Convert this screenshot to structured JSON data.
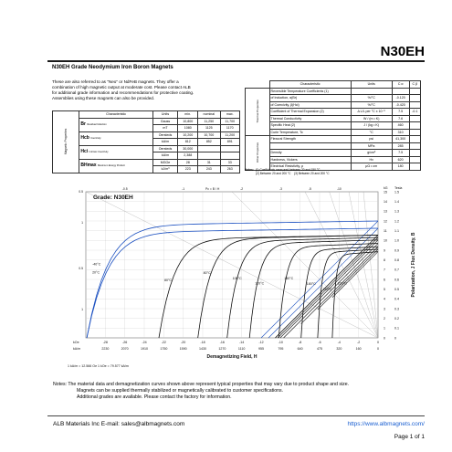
{
  "title": "N30EH",
  "subhead": "N30EH Grade Neodymium Iron Boron Magnets",
  "intro": [
    "These are also referred to as \"Neo\" or NdFeB magnets. They offer a",
    "combination of high magnetic output at moderate cost. Please contact ALB",
    "for additional grade information and recommendations for protective coating.",
    "Assemblies using these magnets can also be provided."
  ],
  "mag_table": {
    "vertical_label": "Magnetic Properties",
    "headers": [
      "Characteristic",
      "Units",
      "min.",
      "nominal",
      "max."
    ],
    "groups": [
      {
        "symbol": "Br",
        "desc": "Residual Induction",
        "rows": [
          {
            "units": "Gauss",
            "min": "10,800",
            "nominal": "11,250",
            "max": "11,700"
          },
          {
            "units": "mT",
            "min": "1080",
            "nominal": "1125",
            "max": "1170"
          }
        ]
      },
      {
        "symbol": "Hcb",
        "desc": "Coercivity",
        "rows": [
          {
            "units": "Oersteds",
            "min": "10,200",
            "nominal": "10,700",
            "max": "11,200"
          },
          {
            "units": "kA/m",
            "min": "812",
            "nominal": "852",
            "max": "891"
          }
        ]
      },
      {
        "symbol": "Hci",
        "desc": "Intrinsic Coercivity",
        "rows": [
          {
            "units": "Oersteds",
            "min": "30,000",
            "nominal": "",
            "max": ""
          },
          {
            "units": "kA/m",
            "min": "2,388",
            "nominal": "",
            "max": ""
          }
        ]
      },
      {
        "symbol": "BHmax",
        "desc": "Maximum Energy Product",
        "rows": [
          {
            "units": "MGOe",
            "min": "28",
            "nominal": "31",
            "max": "33"
          },
          {
            "units": "kJ/m³",
            "min": "223",
            "nominal": "243",
            "max": "263"
          }
        ]
      }
    ]
  },
  "therm_table": {
    "headers": [
      "Characteristic",
      "Units",
      "C α",
      "C β"
    ],
    "thermal_label": "Thermal Properties",
    "other_label": "Other Properties",
    "thermal_rows": [
      {
        "name": "Reversible Temperature Coefficients (1)",
        "units": "",
        "a": "",
        "b": ""
      },
      {
        "name": "of Induction, α(Br)",
        "units": "%/°C",
        "a": "-0.120",
        "b": ""
      },
      {
        "name": "of Coercivity, β(Hci)",
        "units": "%/°C",
        "a": "-0.420",
        "b": ""
      },
      {
        "name": "Coefficient of Thermal Expansion (2)",
        "units": "Δ L/L per °C x 10⁻⁶",
        "a": "7.5",
        "b": "-0.1"
      },
      {
        "name": "Thermal Conductivity",
        "units": "W / (m • K)",
        "a": "7.6",
        "b": ""
      },
      {
        "name": "Specific Heat (2)",
        "units": "J / (kg • K)",
        "a": "460",
        "b": ""
      },
      {
        "name": "Curie Temperature, Tc",
        "units": "°C",
        "a": "310",
        "b": ""
      }
    ],
    "other_rows": [
      {
        "name": "Flexural Strength",
        "units": "psi",
        "a": "41,300",
        "b": ""
      },
      {
        "name": "",
        "units": "MPa",
        "a": "285",
        "b": ""
      },
      {
        "name": "Density",
        "units": "g/cm³",
        "a": "7.5",
        "b": ""
      },
      {
        "name": "Hardness, Vickers",
        "units": "Hv",
        "a": "620",
        "b": ""
      },
      {
        "name": "Electrical Resistivity, ρ",
        "units": "μΩ • cm",
        "a": "180",
        "b": ""
      }
    ],
    "notes_label": "Notes:",
    "note1": "(1) Coefficients measured between 20 and 150 °C",
    "note2": "(2) Between 20 and 200 °C",
    "note3": "(3) Between 20 and 200 °C"
  },
  "chart_data": {
    "type": "line",
    "title": "Grade: N30EH",
    "xlabel": "Demagnetizing Field, H",
    "ylabel_right": "Polarization, J   Flux Density, B",
    "x_units_top": "kOe",
    "x_units_bottom": "kA/m",
    "y_units_left": "kG",
    "y_units_right_kg": "kG",
    "y_units_right_t": "Tesla",
    "xlim_koe": [
      -30,
      0
    ],
    "ylim_kg": [
      0,
      15
    ],
    "x_ticks_koe": [
      "-28",
      "-26",
      "-24",
      "-22",
      "-20",
      "-18",
      "-16",
      "-14",
      "-12",
      "-10",
      "-8",
      "-6",
      "-4",
      "-2",
      "0"
    ],
    "x_ticks_kam": [
      "2230",
      "2070",
      "1910",
      "1750",
      "1590",
      "1430",
      "1270",
      "1110",
      "955",
      "795",
      "640",
      "475",
      "320",
      "160",
      "0"
    ],
    "y_ticks_kg": [
      "15",
      "14",
      "13",
      "12",
      "11",
      "10",
      "9",
      "8",
      "7",
      "6",
      "5",
      "4",
      "3",
      "2",
      "1",
      "0"
    ],
    "y_ticks_t": [
      "1.5",
      "1.4",
      "1.3",
      "1.2",
      "1.1",
      "1.0",
      "0.9",
      "0.8",
      "0.7",
      "0.6",
      "0.5",
      "0.4",
      "0.3",
      "0.2",
      "0.1",
      "0"
    ],
    "left_axis_labels": [
      "0.5",
      "1",
      "0.5",
      "1"
    ],
    "top_axis_labels": [
      "-0.5",
      "-1",
      "Pc = B / H",
      "-2",
      "-3",
      "-5",
      "-10"
    ],
    "conversion_note": "1 kA/m = 12.566 Oe    1 kOe = 79.577 kA/m",
    "series": [
      {
        "name": "-40°C",
        "Br": 12.0,
        "Hci": 33.0,
        "color": "#1a4fc0"
      },
      {
        "name": "20°C",
        "Br": 11.25,
        "Hci": 30.0,
        "color": "#1a4fc0"
      },
      {
        "name": "80°C",
        "Br": 10.55,
        "Hci": 22.5,
        "color": "#111111"
      },
      {
        "name": "80°C",
        "Br": 10.55,
        "Hci": 18.5,
        "color": "#111111"
      },
      {
        "name": "100°C",
        "Br": 10.3,
        "Hci": 15.5,
        "color": "#111111"
      },
      {
        "name": "120°C",
        "Br": 10.05,
        "Hci": 13.2,
        "color": "#111111"
      },
      {
        "name": "150°C",
        "Br": 9.7,
        "Hci": 10.2,
        "color": "#111111"
      },
      {
        "name": "180°C",
        "Br": 9.35,
        "Hci": 7.9,
        "color": "#111111"
      },
      {
        "name": "200°C",
        "Br": 9.1,
        "Hci": 6.2,
        "color": "#111111"
      },
      {
        "name": "220°C",
        "Br": 8.85,
        "Hci": 4.7,
        "color": "#111111"
      }
    ],
    "load_lines_pc": [
      0.5,
      1,
      2,
      3,
      5,
      10
    ]
  },
  "notes": [
    "Notes: The material data and demagnetization curves shown above represent typical properties that may vary due to product shape and size.",
    "Magnets can be supplied thermally stabilized or magnetically calibrated to customer specifications.",
    "Additional grades are available. Please contact the factory for information."
  ],
  "footer": {
    "left": "ALB Materials Inc  E-mail:  sales@albmagnets.com",
    "url": "https://www.albmagnets.com/",
    "page": "Page 1 of 1"
  }
}
